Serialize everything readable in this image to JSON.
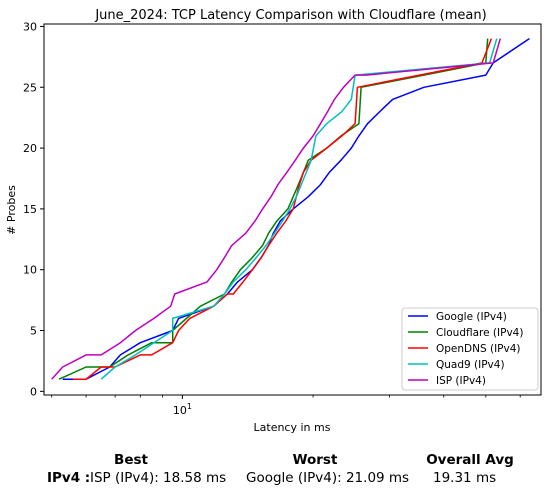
{
  "chart_data": {
    "type": "line",
    "title": "June_2024: TCP Latency Comparison with Cloudflare (mean)",
    "xlabel": "Latency in ms",
    "ylabel": "# Probes",
    "x_scale": "log",
    "xlim": [
      4.8,
      67
    ],
    "ylim": [
      -0.3,
      30.2
    ],
    "x_ticks": [
      {
        "value": 10,
        "label": "10^1"
      }
    ],
    "y_ticks": [
      0,
      5,
      10,
      15,
      20,
      25,
      30
    ],
    "legend_position": "lower right",
    "series": [
      {
        "name": "Google (IPv4)",
        "color": "#0000ff",
        "x": [
          5.3,
          6.0,
          6.8,
          7.2,
          8.0,
          9.5,
          9.8,
          11.8,
          12.7,
          13.4,
          14.5,
          15.2,
          15.8,
          16.2,
          16.8,
          18.0,
          19.5,
          20.8,
          21.8,
          23.2,
          24.5,
          25.5,
          26.7,
          28.5,
          30.5,
          36.0,
          50.0,
          52.0,
          63.0
        ],
        "y": [
          1,
          1,
          2,
          3,
          4,
          5,
          6,
          7,
          8,
          9,
          10,
          11,
          12,
          13,
          14,
          15,
          16,
          17,
          18,
          19,
          20,
          21,
          22,
          23,
          24,
          25,
          26,
          27,
          29
        ]
      },
      {
        "name": "Cloudflare (IPv4)",
        "color": "#008000",
        "x": [
          5.2,
          6.0,
          6.8,
          7.5,
          8.5,
          9.5,
          9.5,
          11.0,
          12.5,
          13.0,
          13.6,
          14.5,
          15.3,
          15.8,
          16.5,
          17.5,
          18.0,
          18.5,
          19.0,
          19.5,
          21.5,
          23.2,
          25.5,
          25.8,
          36.0,
          50.0,
          50.5
        ],
        "y": [
          1,
          2,
          2,
          3,
          4,
          4,
          5,
          7,
          8,
          9,
          10,
          11,
          12,
          13,
          14,
          15,
          16,
          17,
          18,
          19,
          20,
          21,
          22,
          25,
          26,
          27,
          29
        ]
      },
      {
        "name": "OpenDNS (IPv4)",
        "color": "#ff0000",
        "x": [
          5.6,
          6.0,
          6.5,
          7.0,
          8.0,
          8.5,
          9.5,
          9.8,
          10.4,
          11.8,
          12.7,
          13.1,
          13.8,
          14.5,
          15.2,
          15.8,
          16.5,
          17.3,
          18.0,
          18.3,
          18.6,
          19.0,
          19.8,
          21.5,
          23.3,
          25.0,
          25.3,
          49.0,
          51.5
        ],
        "y": [
          1,
          1,
          2,
          2,
          3,
          3,
          4,
          5,
          6,
          7,
          8,
          8,
          9,
          10,
          11,
          12,
          13,
          14,
          15,
          16,
          17,
          18,
          19,
          20,
          21,
          22,
          25,
          27,
          29
        ]
      },
      {
        "name": "Quad9 (IPv4)",
        "color": "#00bfbf",
        "x": [
          6.5,
          7.0,
          7.8,
          8.6,
          9.5,
          9.5,
          11.8,
          12.5,
          13.1,
          14.0,
          14.8,
          15.6,
          16.3,
          17.0,
          17.7,
          18.3,
          19.3,
          19.8,
          20.3,
          21.5,
          23.3,
          24.5,
          25.0,
          51.0,
          53.0
        ],
        "y": [
          1,
          2,
          3,
          4,
          5,
          6,
          7,
          8,
          9,
          10,
          11,
          12,
          13,
          14,
          15,
          16,
          18,
          19,
          21,
          22,
          23,
          24,
          26,
          27,
          29
        ]
      },
      {
        "name": "ISP (IPv4)",
        "color": "#bf00bf",
        "x": [
          5.0,
          5.3,
          6.0,
          6.5,
          7.2,
          7.8,
          8.6,
          9.4,
          9.6,
          11.4,
          12.0,
          12.5,
          13.0,
          14.0,
          14.7,
          15.3,
          16.0,
          16.6,
          17.4,
          18.2,
          19.0,
          20.0,
          20.8,
          21.6,
          22.4,
          23.5,
          25.0,
          26.5,
          52.0,
          54.0
        ],
        "y": [
          1,
          2,
          3,
          3,
          4,
          5,
          6,
          7,
          8,
          9,
          10,
          11,
          12,
          13,
          14,
          15,
          16,
          17,
          18,
          19,
          20,
          21,
          22,
          23,
          24,
          25,
          26,
          26,
          27,
          29
        ]
      }
    ]
  },
  "summary": {
    "headers": {
      "best": "Best",
      "worst": "Worst",
      "overall": "Overall Avg"
    },
    "row_label": "IPv4 :",
    "best": "ISP (IPv4): 18.58 ms",
    "worst": "Google (IPv4): 21.09 ms",
    "overall": "19.31 ms"
  }
}
